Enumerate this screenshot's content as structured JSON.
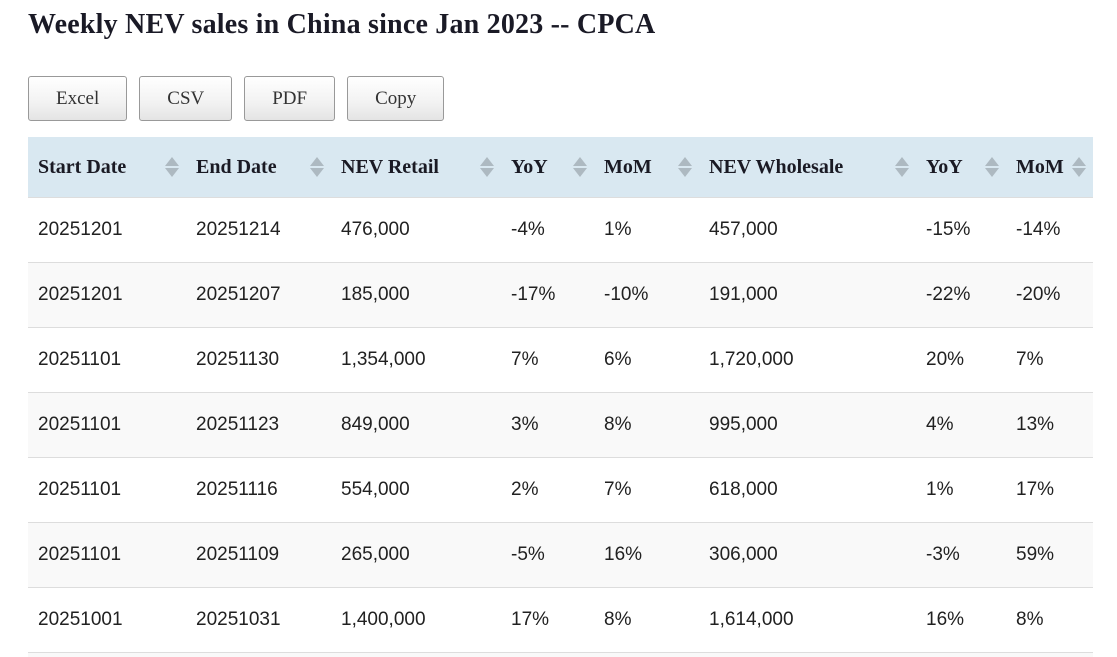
{
  "page": {
    "title": "Weekly NEV sales in China since Jan 2023 -- CPCA"
  },
  "toolbar": {
    "buttons": [
      {
        "label": "Excel"
      },
      {
        "label": "CSV"
      },
      {
        "label": "PDF"
      },
      {
        "label": "Copy"
      }
    ]
  },
  "table": {
    "columns": [
      {
        "label": "Start Date",
        "sort_icon": "sort-arrows-icon"
      },
      {
        "label": "End Date",
        "sort_icon": "sort-arrows-icon"
      },
      {
        "label": "NEV Retail",
        "sort_icon": "sort-arrows-icon"
      },
      {
        "label": "YoY",
        "sort_icon": "sort-arrows-icon"
      },
      {
        "label": "MoM",
        "sort_icon": "sort-arrows-icon"
      },
      {
        "label": "NEV Wholesale",
        "sort_icon": "sort-arrows-icon"
      },
      {
        "label": "YoY",
        "sort_icon": "sort-arrows-icon"
      },
      {
        "label": "MoM",
        "sort_icon": "sort-arrows-icon"
      }
    ],
    "rows": [
      [
        "20251201",
        "20251214",
        "476,000",
        "-4%",
        "1%",
        "457,000",
        "-15%",
        "-14%"
      ],
      [
        "20251201",
        "20251207",
        "185,000",
        "-17%",
        "-10%",
        "191,000",
        "-22%",
        "-20%"
      ],
      [
        "20251101",
        "20251130",
        "1,354,000",
        "7%",
        "6%",
        "1,720,000",
        "20%",
        "7%"
      ],
      [
        "20251101",
        "20251123",
        "849,000",
        "3%",
        "8%",
        "995,000",
        "4%",
        "13%"
      ],
      [
        "20251101",
        "20251116",
        "554,000",
        "2%",
        "7%",
        "618,000",
        "1%",
        "17%"
      ],
      [
        "20251101",
        "20251109",
        "265,000",
        "-5%",
        "16%",
        "306,000",
        "-3%",
        "59%"
      ],
      [
        "20251001",
        "20251031",
        "1,400,000",
        "17%",
        "8%",
        "1,614,000",
        "16%",
        "8%"
      ]
    ]
  },
  "colors": {
    "header_bg": "#d9e8f1",
    "stripe_bg": "#f9f9f9",
    "sort_arrow": "#adb9c1",
    "title_text": "#1a1a26"
  }
}
